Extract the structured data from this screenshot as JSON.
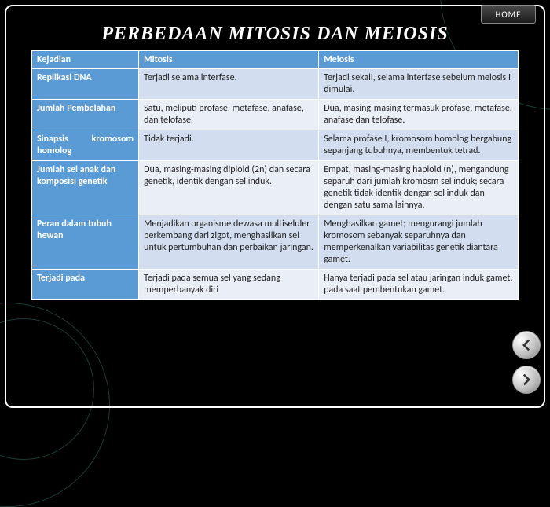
{
  "title": "PERBEDAAN MITOSIS DAN MEIOSIS",
  "home_label": "HOME",
  "headers": {
    "col1": "Kejadian",
    "col2": "Mitosis",
    "col3": "Meiosis"
  },
  "rows": [
    {
      "key": "Replikasi DNA",
      "mit": "Terjadi selama interfase.",
      "mei": "Terjadi sekali, selama interfase sebelum meiosis I dimulai."
    },
    {
      "key": "Jumlah Pembelahan",
      "mit": "Satu, meliputi profase, metafase, anafase, dan telofase.",
      "mei": "Dua, masing-masing termasuk profase, metafase, anafase dan telofase."
    },
    {
      "key": "Sinapsis kromosom homolog",
      "mit": "Tidak terjadi.",
      "mei": "Selama profase I, kromosom homolog bergabung sepanjang tubuhnya, membentuk tetrad."
    },
    {
      "key": "Jumlah sel anak dan komposisi genetik",
      "mit": "Dua, masing-masing diploid (2n) dan secara genetik, identik dengan sel induk.",
      "mei": "Empat, masing-masing haploid (n), mengandung separuh dari jumlah kromosm sel induk; secara genetik tidak identik dengan sel induk dan dengan satu sama lainnya."
    },
    {
      "key": "Peran dalam tubuh hewan",
      "mit": "Menjadikan organisme dewasa multiseluler berkembang dari zigot, menghasilkan sel untuk pertumbuhan dan perbaikan jaringan.",
      "mei": "Menghasilkan gamet; mengurangi jumlah kromosom sebanyak separuhnya dan memperkenalkan variabilitas genetik diantara gamet."
    },
    {
      "key": "Terjadi pada",
      "mit": "Terjadi pada semua sel yang sedang memperbanyak diri",
      "mei": "Hanya terjadi pada sel atau jaringan induk gamet, pada saat pembentukan gamet."
    }
  ],
  "colors": {
    "header_bg": "#5b9bd5",
    "row_odd": "#d2deef",
    "row_even": "#eaeff7"
  }
}
